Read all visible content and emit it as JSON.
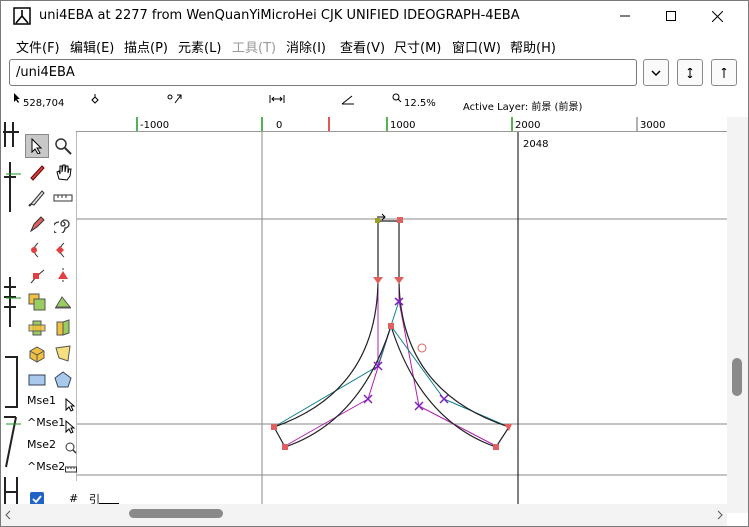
{
  "window": {
    "title": "uni4EBA at 2277 from WenQuanYiMicroHei CJK UNIFIED IDEOGRAPH-4EBA",
    "app_icon": "fontforge-icon",
    "controls": {
      "minimize": "minimize-icon",
      "maximize": "maximize-icon",
      "close": "close-icon"
    }
  },
  "menubar": {
    "items": [
      {
        "label": "文件(F)",
        "enabled": true
      },
      {
        "label": "编辑(E)",
        "enabled": true
      },
      {
        "label": "描点(P)",
        "enabled": true
      },
      {
        "label": "元素(L)",
        "enabled": true
      },
      {
        "label": "工具(T)",
        "enabled": false
      },
      {
        "label": "消除(I)",
        "enabled": true
      },
      {
        "label": "查看(V)",
        "enabled": true
      },
      {
        "label": "尺寸(M)",
        "enabled": true
      },
      {
        "label": "窗口(W)",
        "enabled": true
      },
      {
        "label": "帮助(H)",
        "enabled": true
      }
    ]
  },
  "glyph_field": {
    "value": "/uni4EBA"
  },
  "nav_buttons": [
    "chevron-down-icon",
    "prev-glyph-icon",
    "next-glyph-icon"
  ],
  "inforow": {
    "coords": "528,704",
    "zoom": "12.5%",
    "active_layer": "Active Layer: 前景 (前景)"
  },
  "ruler": {
    "labels": [
      "-1000",
      "0",
      "1000",
      "2000",
      "3000"
    ]
  },
  "canvas": {
    "width_label": "2048"
  },
  "toolbox": {
    "tools": [
      "pointer-icon",
      "magnify-icon",
      "freehand-icon",
      "scroll-hand-icon",
      "knife-icon",
      "ruler-icon",
      "pen-icon",
      "spiro-icon",
      "curve-point-icon",
      "hv-curve-point-icon",
      "corner-point-icon",
      "tangent-point-icon",
      "scale-icon",
      "flip-icon",
      "rotate-icon",
      "skew-icon",
      "3d-rotate-icon",
      "perspective-icon",
      "rectangle-icon",
      "polygon-icon"
    ],
    "mouse_labels": [
      "Mse1",
      "^Mse1",
      "Mse2",
      "^Mse2"
    ]
  },
  "layer_bar": {
    "hash": "#",
    "sym": "引"
  },
  "colors": {
    "outline": "#222222",
    "control_line": "#b020b0",
    "control_line_cyan": "#108090",
    "point_red": "#e06060",
    "grid": "#888888",
    "ruler_green": "#1a9a1a",
    "ruler_red": "#cc2222",
    "checkbox": "#1f64c4"
  }
}
